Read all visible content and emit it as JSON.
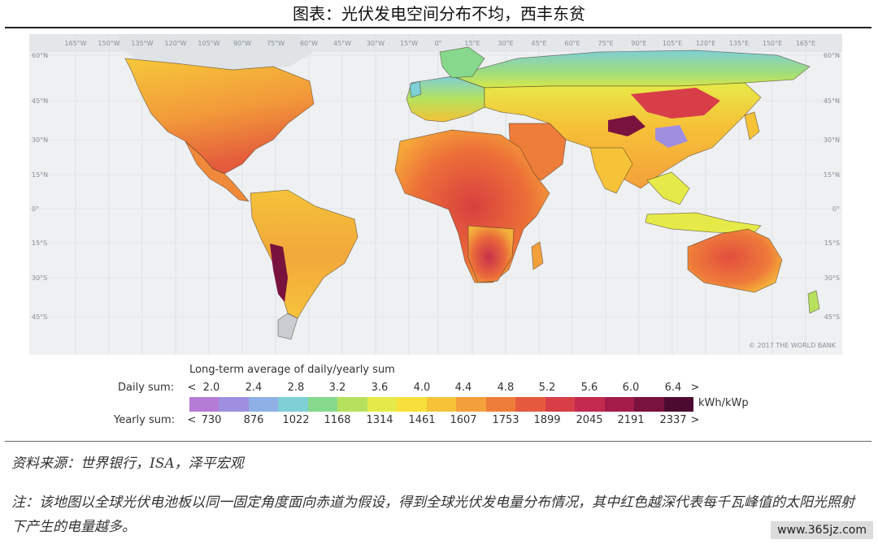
{
  "title": "图表：光伏发电空间分布不均，西丰东贫",
  "map": {
    "longitude_labels": [
      "165°W",
      "150°W",
      "135°W",
      "120°W",
      "105°W",
      "90°W",
      "75°W",
      "60°W",
      "45°W",
      "30°W",
      "15°W",
      "0°",
      "15°E",
      "30°E",
      "45°E",
      "60°E",
      "75°E",
      "90°E",
      "105°E",
      "120°E",
      "135°E",
      "150°E",
      "165°E"
    ],
    "latitude_labels": [
      "60°N",
      "45°N",
      "30°N",
      "15°N",
      "0°",
      "15°S",
      "30°S",
      "45°S"
    ],
    "copyright": "© 2017 THE WORLD BANK",
    "colors": {
      "ocean": "#eef0f2",
      "grid": "#d6dae0",
      "border": "#3a2a1a"
    }
  },
  "legend": {
    "title": "Long-term average of daily/yearly sum",
    "daily_label": "Daily sum:",
    "yearly_label": "Yearly sum:",
    "daily_ticks": [
      "<",
      "2.0",
      "2.4",
      "2.8",
      "3.2",
      "3.6",
      "4.0",
      "4.4",
      "4.8",
      "5.2",
      "5.6",
      "6.0",
      "6.4",
      ">"
    ],
    "yearly_ticks": [
      "<",
      "730",
      "876",
      "1022",
      "1168",
      "1314",
      "1461",
      "1607",
      "1753",
      "1899",
      "2045",
      "2191",
      "2337",
      ">"
    ],
    "unit": "kWh/kWp",
    "colors": [
      "#b57cd6",
      "#9f8fe0",
      "#8fb0e6",
      "#7ecfd6",
      "#86d98c",
      "#b6e15e",
      "#e6ea48",
      "#f7df3c",
      "#f6c238",
      "#f3a03a",
      "#ee7d3a",
      "#e55a3e",
      "#d83e48",
      "#c22a4e",
      "#a31c4a",
      "#7a123e",
      "#4d0a30"
    ]
  },
  "source": "资料来源：世界银行，ISA，泽平宏观",
  "note": "注：该地图以全球光伏电池板以同一固定角度面向赤道为假设，得到全球光伏发电量分布情况，其中红色越深代表每千瓦峰值的太阳光照射下产生的电量越多。",
  "watermark": "www.365jz.com"
}
